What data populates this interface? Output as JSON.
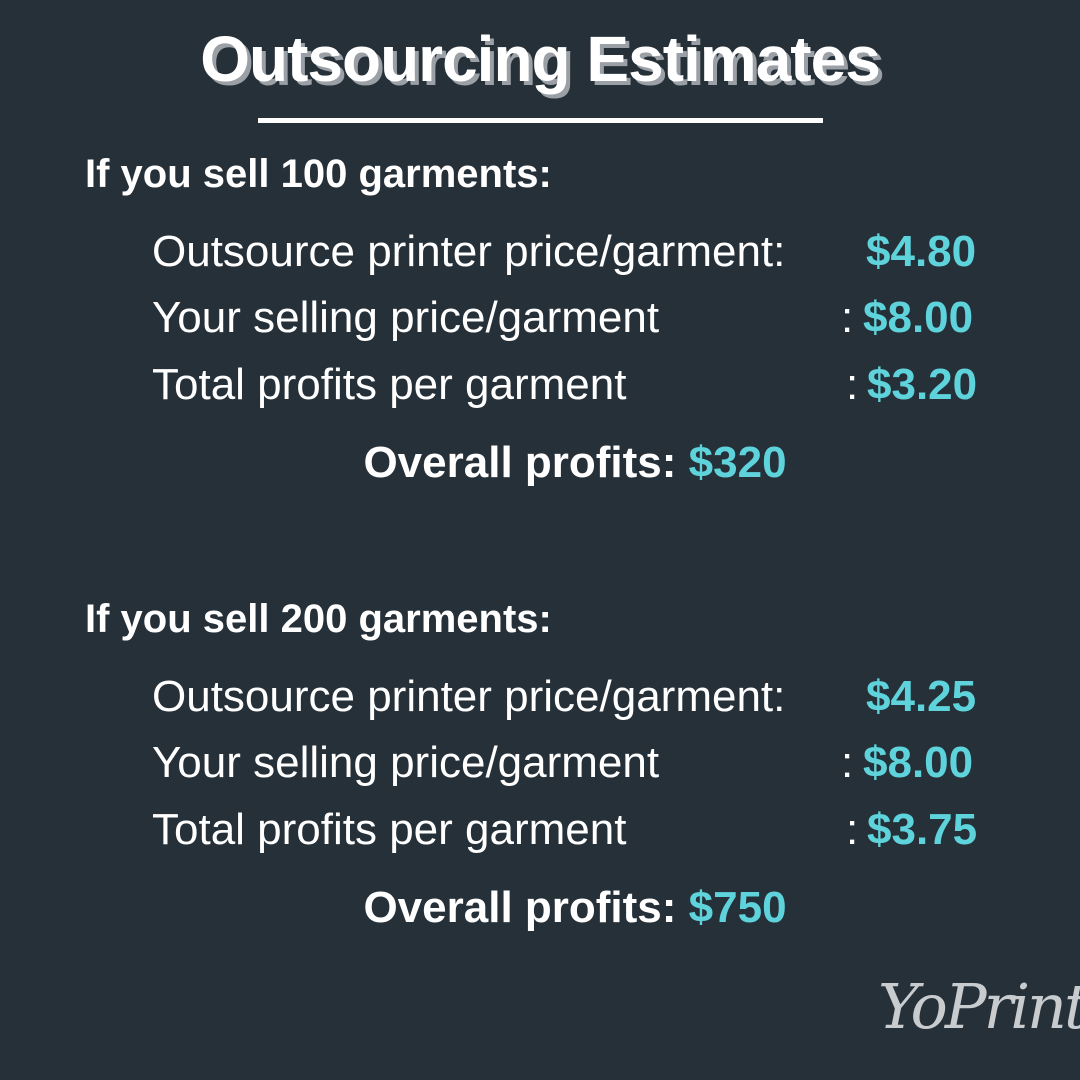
{
  "title": "Outsourcing Estimates",
  "colors": {
    "background": "#263038",
    "accent": "#5fd3dc",
    "text": "#ffffff"
  },
  "sections": [
    {
      "heading": "If you sell 100 garments:",
      "rows": [
        {
          "label": "Outsource printer price/garment",
          "value": "$4.80"
        },
        {
          "label": "Your selling price/garment",
          "value": "$8.00"
        },
        {
          "label": "Total profits per garment",
          "value": "$3.20"
        }
      ],
      "overall_label": "Overall profits:",
      "overall_value": "$320"
    },
    {
      "heading": "If you sell 200 garments:",
      "rows": [
        {
          "label": "Outsource printer price/garment",
          "value": "$4.25"
        },
        {
          "label": "Your selling price/garment",
          "value": "$8.00"
        },
        {
          "label": "Total profits per garment",
          "value": "$3.75"
        }
      ],
      "overall_label": "Overall profits:",
      "overall_value": "$750"
    }
  ],
  "logo": "YoPrint"
}
